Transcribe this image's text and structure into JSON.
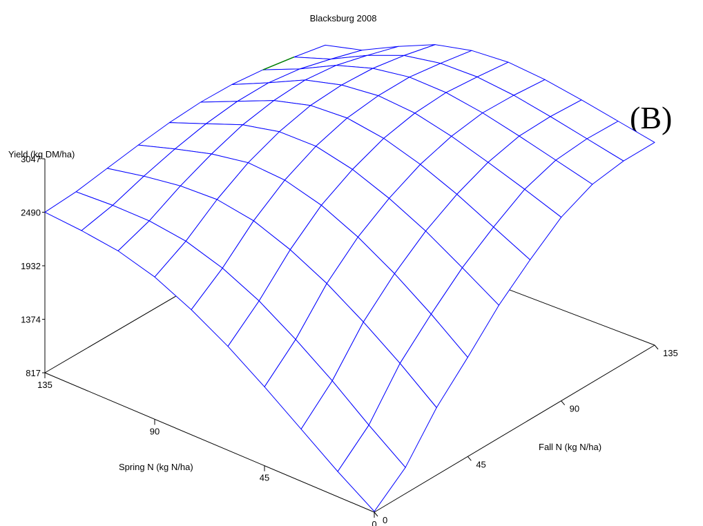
{
  "chart_data": {
    "type": "surface",
    "title": "Blacksburg 2008",
    "panel_label": "(B)",
    "zlabel": "Yield (kg DM/ha)",
    "xlabel": "Spring N (kg N/ha)",
    "ylabel": "Fall N (kg N/ha)",
    "z_ticks": [
      "817",
      "1374",
      "1932",
      "2490",
      "3047"
    ],
    "z_tick_values": [
      817,
      1374,
      1932,
      2490,
      3047
    ],
    "zlim": [
      817,
      3047
    ],
    "x_ticks": [
      "0",
      "45",
      "90",
      "135"
    ],
    "x_tick_values": [
      0,
      45,
      90,
      135
    ],
    "xlim": [
      0,
      135
    ],
    "y_ticks": [
      "0",
      "45",
      "90",
      "135"
    ],
    "y_tick_values": [
      0,
      45,
      90,
      135
    ],
    "ylim": [
      0,
      135
    ],
    "x": [
      0,
      15,
      30,
      45,
      60,
      75,
      90,
      105,
      120,
      135
    ],
    "y": [
      0,
      15,
      30,
      45,
      60,
      75,
      90,
      105,
      120,
      135
    ],
    "z": [
      [
        825,
        1090,
        1520,
        1850,
        2200,
        2480,
        2730,
        2880,
        2930,
        2930
      ],
      [
        1080,
        1370,
        1820,
        2140,
        2430,
        2660,
        2860,
        2970,
        3000,
        2990
      ],
      [
        1360,
        1670,
        2090,
        2400,
        2650,
        2840,
        2980,
        3060,
        3070,
        3050
      ],
      [
        1640,
        1940,
        2330,
        2620,
        2830,
        2990,
        3090,
        3140,
        3130,
        3100
      ],
      [
        1900,
        2180,
        2520,
        2790,
        2970,
        3100,
        3170,
        3190,
        3160,
        3120
      ],
      [
        2120,
        2360,
        2660,
        2890,
        3050,
        3150,
        3190,
        3190,
        3140,
        3080
      ],
      [
        2300,
        2480,
        2720,
        2910,
        3040,
        3120,
        3140,
        3120,
        3060,
        2980
      ],
      [
        2410,
        2530,
        2700,
        2840,
        2950,
        3010,
        3030,
        2990,
        2900,
        2800
      ],
      [
        2460,
        2530,
        2640,
        2730,
        2800,
        2840,
        2840,
        2790,
        2700,
        2600
      ],
      [
        2490,
        2510,
        2560,
        2610,
        2650,
        2670,
        2660,
        2620,
        2560,
        2490
      ]
    ],
    "mesh_color": "#0000ff",
    "highlight_color": "#008000",
    "grid": false
  }
}
